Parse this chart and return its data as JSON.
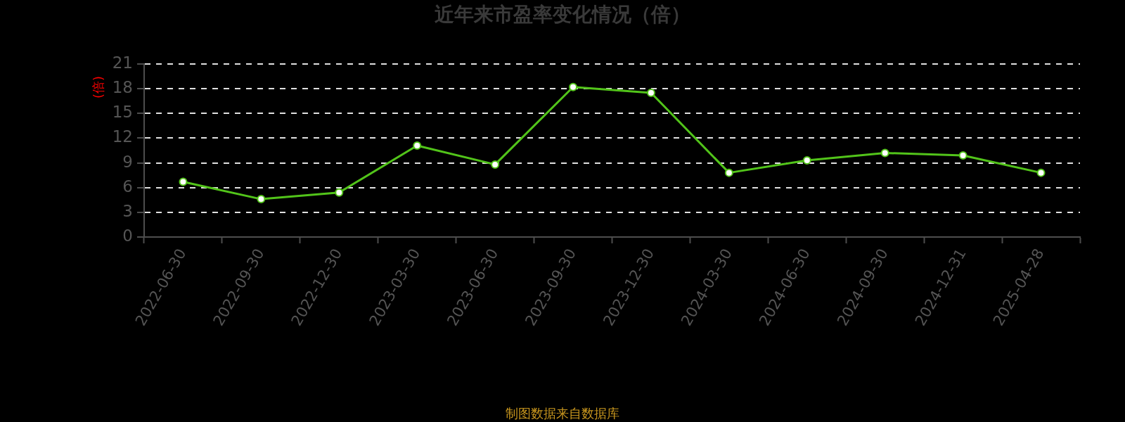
{
  "chart_data": {
    "type": "line",
    "title": "近年来市盈率变化情况（倍）",
    "ylabel": "(倍)",
    "annotations": [
      "制图数据来自数据库"
    ],
    "categories": [
      "2022-06-30",
      "2022-09-30",
      "2022-12-30",
      "2023-03-30",
      "2023-06-30",
      "2023-09-30",
      "2023-12-30",
      "2024-03-30",
      "2024-06-30",
      "2024-09-30",
      "2024-12-31",
      "2025-04-28"
    ],
    "values": [
      6.7,
      4.6,
      5.4,
      11.1,
      8.8,
      18.2,
      17.5,
      7.8,
      9.3,
      10.2,
      9.9,
      7.8
    ],
    "color": "#52c41a",
    "ylim": [
      0,
      21
    ],
    "yticks": [
      0,
      3,
      6,
      9,
      12,
      15,
      18,
      21
    ],
    "grid": "y",
    "legend": false,
    "marker": "circle",
    "line_style": "solid"
  }
}
